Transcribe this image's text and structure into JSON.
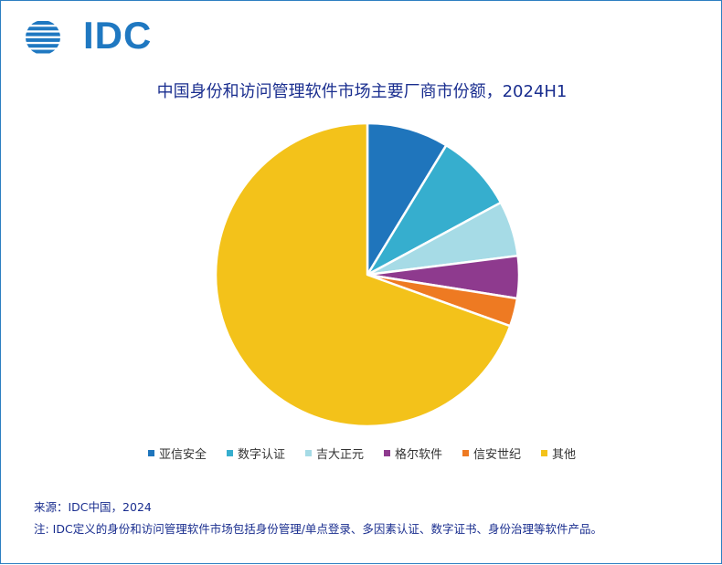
{
  "header": {
    "logo_text": "IDC",
    "logo_color": "#1f78c1"
  },
  "title_color": "#1a2e8f",
  "text_color": "#1a2e8f",
  "footer": {
    "source": "来源：IDC中国，2024",
    "note": "注: IDC定义的身份和访问管理软件市场包括身份管理/单点登录、多因素认证、数字证书、身份治理等软件产品。"
  },
  "chart_data": {
    "type": "pie",
    "title": "中国身份和访问管理软件市场主要厂商市份额，2024H1",
    "legend_position": "bottom",
    "start_angle_deg": 0,
    "direction": "clockwise",
    "slices": [
      {
        "label": "亚信安全",
        "value": 8.7,
        "color": "#1f75bc"
      },
      {
        "label": "数字认证",
        "value": 8.4,
        "color": "#36aece"
      },
      {
        "label": "吉大正元",
        "value": 5.9,
        "color": "#a6dbe6"
      },
      {
        "label": "格尔软件",
        "value": 4.5,
        "color": "#8e3a8e"
      },
      {
        "label": "信安世纪",
        "value": 3.0,
        "color": "#ee7a22"
      },
      {
        "label": "其他",
        "value": 69.5,
        "color": "#f3c21a"
      }
    ]
  }
}
